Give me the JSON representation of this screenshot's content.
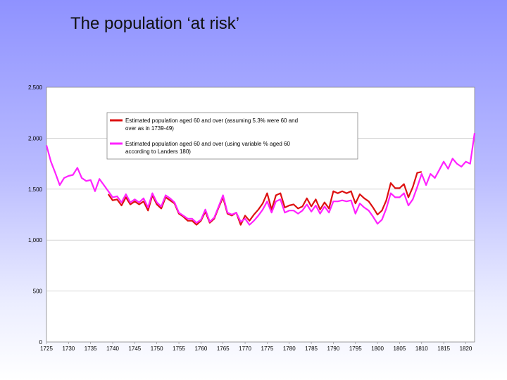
{
  "slide": {
    "title": "The population ‘at risk’"
  },
  "chart_data": {
    "type": "line",
    "title": "",
    "xlabel": "",
    "ylabel": "",
    "xlim": [
      1725,
      1822
    ],
    "ylim": [
      0,
      2500
    ],
    "grid": "horizontal",
    "legend_position": "top-center",
    "ytick_labels": [
      "0",
      "500",
      "1,000",
      "1,500",
      "2,000",
      "2,500"
    ],
    "ytick_values": [
      0,
      500,
      1000,
      1500,
      2000,
      2500
    ],
    "xtick_labels": [
      "1725",
      "1730",
      "1735",
      "1740",
      "1745",
      "1750",
      "1755",
      "1760",
      "1765",
      "1770",
      "1775",
      "1780",
      "1785",
      "1790",
      "1795",
      "1800",
      "1805",
      "1810",
      "1815",
      "1820"
    ],
    "xtick_values": [
      1725,
      1730,
      1735,
      1740,
      1745,
      1750,
      1755,
      1760,
      1765,
      1770,
      1775,
      1780,
      1785,
      1790,
      1795,
      1800,
      1805,
      1810,
      1815,
      1820
    ],
    "series": [
      {
        "name": "Estimated population aged 60 and over (assuming  5.3% were 60 and over as in 1739-49)",
        "color": "#dd1111",
        "x": [
          1739,
          1740,
          1741,
          1742,
          1743,
          1744,
          1745,
          1746,
          1747,
          1748,
          1749,
          1750,
          1751,
          1752,
          1753,
          1754,
          1755,
          1756,
          1757,
          1758,
          1759,
          1760,
          1761,
          1762,
          1763,
          1764,
          1765,
          1766,
          1767,
          1768,
          1769,
          1770,
          1771,
          1772,
          1773,
          1774,
          1775,
          1776,
          1777,
          1778,
          1779,
          1780,
          1781,
          1782,
          1783,
          1784,
          1785,
          1786,
          1787,
          1788,
          1789,
          1790,
          1791,
          1792,
          1793,
          1794,
          1795,
          1796,
          1797,
          1798,
          1799,
          1800,
          1801,
          1802,
          1803,
          1804,
          1805,
          1806,
          1807,
          1808,
          1809,
          1810
        ],
        "values": [
          1450,
          1390,
          1400,
          1340,
          1420,
          1350,
          1380,
          1350,
          1380,
          1290,
          1440,
          1350,
          1310,
          1420,
          1390,
          1360,
          1260,
          1230,
          1190,
          1190,
          1150,
          1190,
          1280,
          1170,
          1210,
          1320,
          1420,
          1260,
          1240,
          1270,
          1150,
          1240,
          1190,
          1250,
          1300,
          1360,
          1460,
          1300,
          1440,
          1460,
          1320,
          1340,
          1350,
          1310,
          1330,
          1410,
          1330,
          1400,
          1300,
          1370,
          1310,
          1480,
          1460,
          1480,
          1460,
          1480,
          1360,
          1450,
          1410,
          1380,
          1320,
          1250,
          1290,
          1390,
          1560,
          1510,
          1510,
          1550,
          1420,
          1520,
          1660,
          1670
        ]
      },
      {
        "name": "Estimated population aged 60 and over (using variable % aged  60 according to Landers 180)",
        "color": "#ff22ff",
        "x": [
          1725,
          1726,
          1727,
          1728,
          1729,
          1730,
          1731,
          1732,
          1733,
          1734,
          1735,
          1736,
          1737,
          1738,
          1739,
          1740,
          1741,
          1742,
          1743,
          1744,
          1745,
          1746,
          1747,
          1748,
          1749,
          1750,
          1751,
          1752,
          1753,
          1754,
          1755,
          1756,
          1757,
          1758,
          1759,
          1760,
          1761,
          1762,
          1763,
          1764,
          1765,
          1766,
          1767,
          1768,
          1769,
          1770,
          1771,
          1772,
          1773,
          1774,
          1775,
          1776,
          1777,
          1778,
          1779,
          1780,
          1781,
          1782,
          1783,
          1784,
          1785,
          1786,
          1787,
          1788,
          1789,
          1790,
          1791,
          1792,
          1793,
          1794,
          1795,
          1796,
          1797,
          1798,
          1799,
          1800,
          1801,
          1802,
          1803,
          1804,
          1805,
          1806,
          1807,
          1808,
          1809,
          1810,
          1811,
          1812,
          1813,
          1814,
          1815,
          1816,
          1817,
          1818,
          1819,
          1820,
          1821,
          1822
        ],
        "values": [
          1930,
          1770,
          1660,
          1540,
          1610,
          1630,
          1640,
          1710,
          1610,
          1580,
          1590,
          1480,
          1600,
          1540,
          1480,
          1420,
          1430,
          1370,
          1450,
          1370,
          1400,
          1370,
          1410,
          1320,
          1460,
          1370,
          1330,
          1440,
          1410,
          1370,
          1270,
          1240,
          1210,
          1210,
          1170,
          1200,
          1300,
          1180,
          1220,
          1330,
          1440,
          1270,
          1250,
          1270,
          1180,
          1210,
          1150,
          1190,
          1240,
          1300,
          1380,
          1270,
          1380,
          1400,
          1270,
          1290,
          1290,
          1260,
          1290,
          1350,
          1280,
          1340,
          1260,
          1330,
          1270,
          1380,
          1380,
          1390,
          1380,
          1390,
          1260,
          1360,
          1320,
          1290,
          1230,
          1160,
          1200,
          1310,
          1460,
          1420,
          1420,
          1460,
          1340,
          1400,
          1520,
          1650,
          1540,
          1650,
          1610,
          1690,
          1770,
          1700,
          1800,
          1750,
          1720,
          1770,
          1750,
          2050
        ]
      }
    ]
  }
}
